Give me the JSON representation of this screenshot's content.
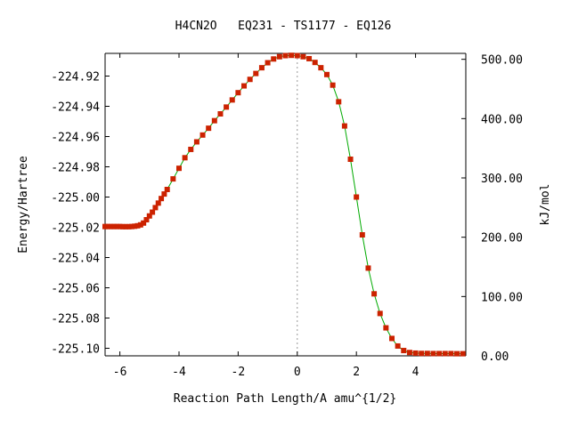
{
  "chart_data": {
    "type": "line",
    "title": "H4CN2O   EQ231 - TS1177 - EQ126",
    "xlabel": "Reaction Path Length/A amu^{1/2}",
    "ylabel": "Energy/Hartree",
    "y2label": "kJ/mol",
    "xlim": [
      -6.5,
      5.7
    ],
    "ylim": [
      -225.105,
      -224.905
    ],
    "y2lim": [
      0,
      510
    ],
    "grid": false,
    "x_ticks": [
      -6,
      -4,
      -2,
      0,
      2,
      4
    ],
    "x_tick_labels": [
      "-6",
      "-4",
      "-2",
      "0",
      "2",
      "4"
    ],
    "y_ticks": [
      -224.92,
      -224.94,
      -224.96,
      -224.98,
      -225.0,
      -225.02,
      -225.04,
      -225.06,
      -225.08,
      -225.1
    ],
    "y_tick_labels": [
      "-224.92",
      "-224.94",
      "-224.96",
      "-224.98",
      "-225.00",
      "-225.02",
      "-225.04",
      "-225.06",
      "-225.08",
      "-225.10"
    ],
    "y2_ticks": [
      0,
      100,
      200,
      300,
      400,
      500
    ],
    "y2_tick_labels": [
      "0.00",
      "100.00",
      "200.00",
      "300.00",
      "400.00",
      "500.00"
    ],
    "series_color": "#00aa00",
    "marker_color": "#cc2200",
    "marker_dashed_zero_line": true,
    "series": [
      {
        "x": [
          -6.5,
          -6.4,
          -6.3,
          -6.2,
          -6.1,
          -6.0,
          -5.9,
          -5.8,
          -5.7,
          -5.6,
          -5.5,
          -5.4,
          -5.3,
          -5.2,
          -5.1,
          -5.0,
          -4.9,
          -4.8,
          -4.7,
          -4.6,
          -4.5,
          -4.4,
          -4.2,
          -4.0,
          -3.8,
          -3.6,
          -3.4,
          -3.2,
          -3.0,
          -2.8,
          -2.6,
          -2.4,
          -2.2,
          -2.0,
          -1.8,
          -1.6,
          -1.4,
          -1.2,
          -1.0,
          -0.8,
          -0.6,
          -0.4,
          -0.2,
          0.0,
          0.2,
          0.4,
          0.6,
          0.8,
          1.0,
          1.2,
          1.4,
          1.6,
          1.8,
          2.0,
          2.2,
          2.4,
          2.6,
          2.8,
          3.0,
          3.2,
          3.4,
          3.6,
          3.8,
          4.0,
          4.2,
          4.4,
          4.6,
          4.8,
          5.0,
          5.2,
          5.4,
          5.6
        ],
        "y": [
          -225.0195,
          -225.0195,
          -225.0195,
          -225.0195,
          -225.0195,
          -225.0195,
          -225.0196,
          -225.0196,
          -225.0196,
          -225.0195,
          -225.0193,
          -225.019,
          -225.0184,
          -225.0172,
          -225.015,
          -225.0125,
          -225.01,
          -225.007,
          -225.004,
          -225.001,
          -224.998,
          -224.995,
          -224.988,
          -224.981,
          -224.974,
          -224.9685,
          -224.9635,
          -224.959,
          -224.9545,
          -224.9495,
          -224.945,
          -224.9405,
          -224.9358,
          -224.931,
          -224.9265,
          -224.9222,
          -224.9183,
          -224.9145,
          -224.9112,
          -224.9087,
          -224.9072,
          -224.9065,
          -224.9063,
          -224.9065,
          -224.9072,
          -224.9085,
          -224.911,
          -224.9145,
          -224.919,
          -224.926,
          -224.937,
          -224.953,
          -224.975,
          -225.0,
          -225.025,
          -225.047,
          -225.064,
          -225.077,
          -225.0865,
          -225.0935,
          -225.0985,
          -225.1015,
          -225.1028,
          -225.1032,
          -225.1034,
          -225.1034,
          -225.1035,
          -225.1035,
          -225.1035,
          -225.1035,
          -225.1036,
          -225.1036
        ]
      }
    ]
  }
}
